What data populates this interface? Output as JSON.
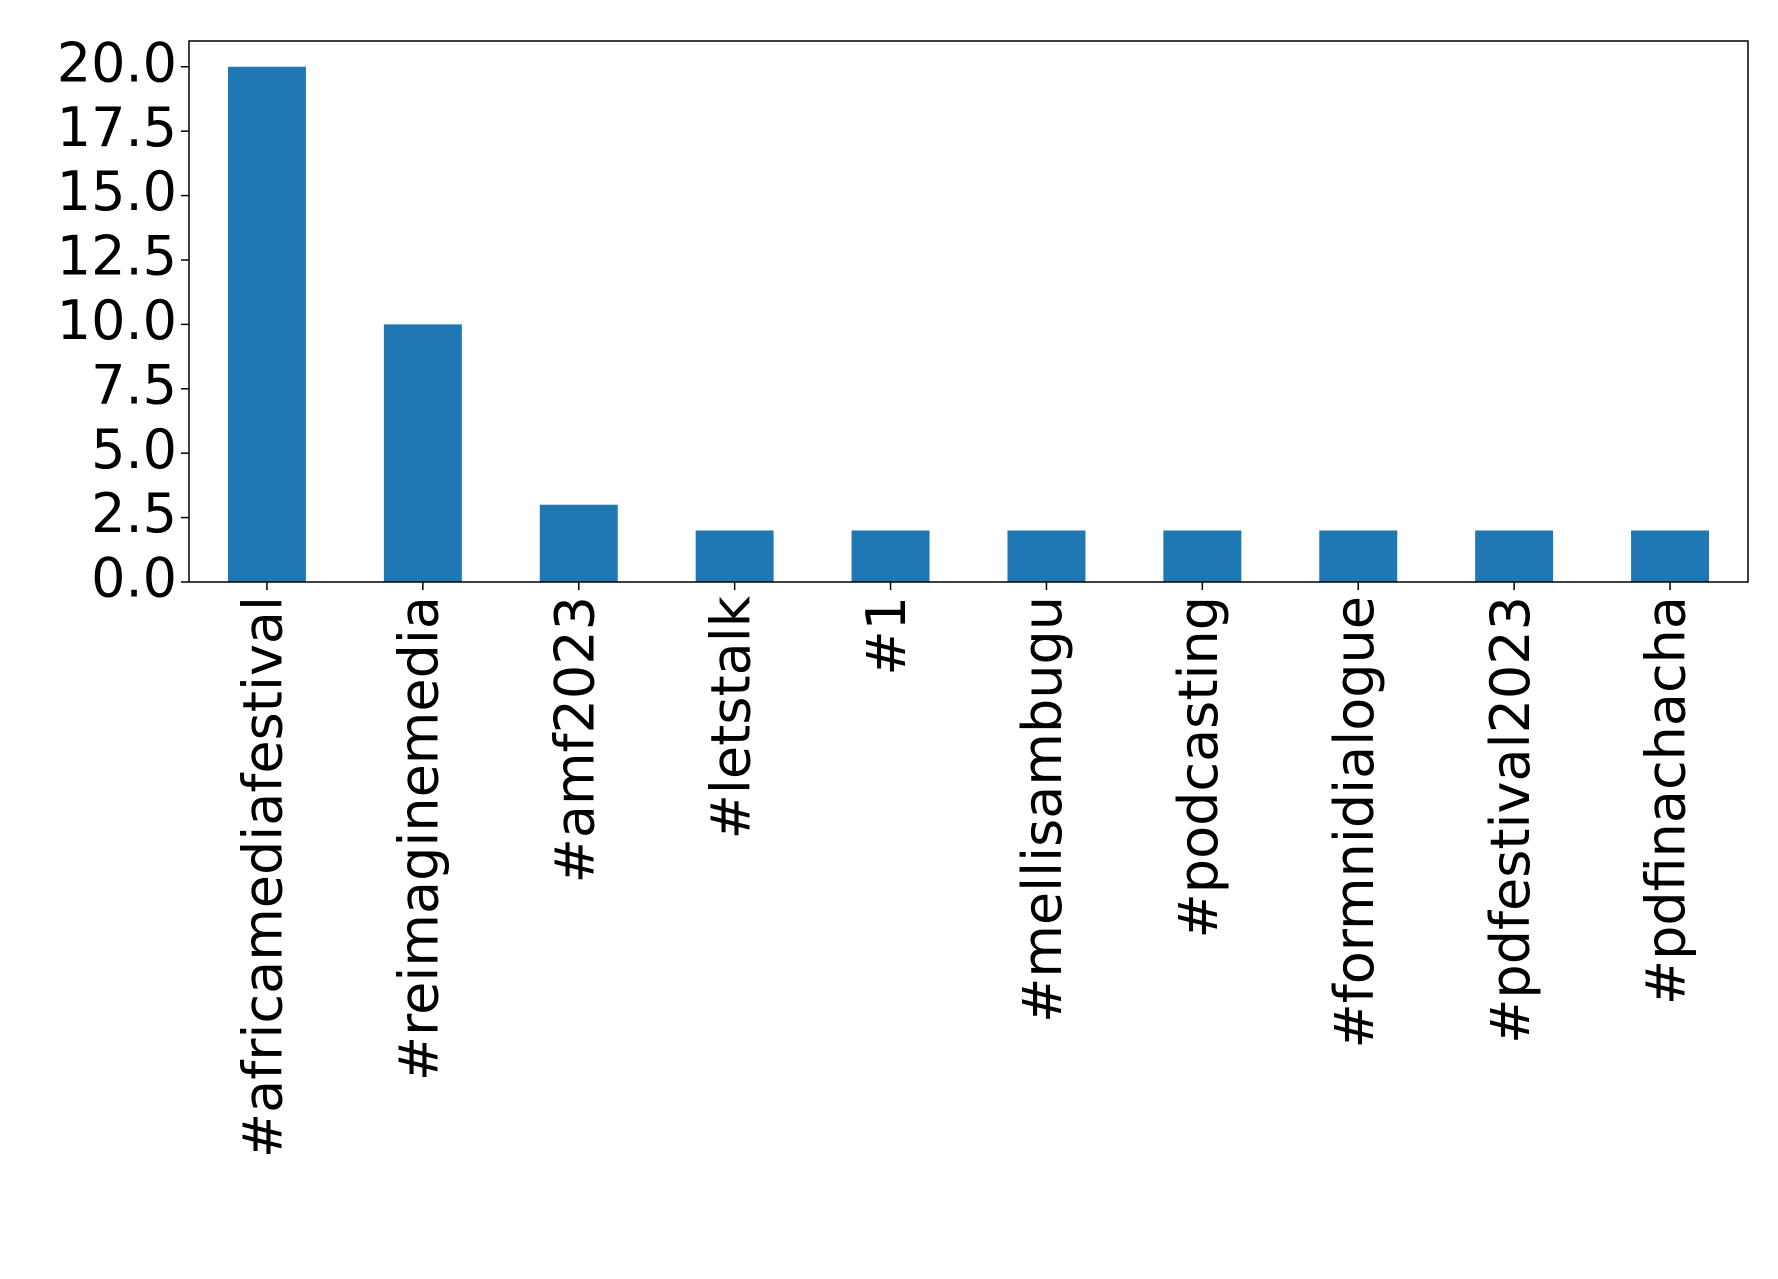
{
  "chart_data": {
    "type": "bar",
    "categories": [
      "#africamediafestival",
      "#reimaginemedia",
      "#amf2023",
      "#letstalk",
      "#1",
      "#mellisambugu",
      "#podcasting",
      "#formnidialogue",
      "#pdfestival2023",
      "#pdfinachacha"
    ],
    "values": [
      20,
      10,
      3,
      2,
      2,
      2,
      2,
      2,
      2,
      2
    ],
    "color": "#1f77b4",
    "ylim": [
      0,
      21
    ],
    "yticks": [
      {
        "value": 0,
        "label": "0.0"
      },
      {
        "value": 2.5,
        "label": "2.5"
      },
      {
        "value": 5,
        "label": "5.0"
      },
      {
        "value": 7.5,
        "label": "7.5"
      },
      {
        "value": 10,
        "label": "10.0"
      },
      {
        "value": 12.5,
        "label": "12.5"
      },
      {
        "value": 15,
        "label": "15.0"
      },
      {
        "value": 17.5,
        "label": "17.5"
      },
      {
        "value": 20,
        "label": "20.0"
      }
    ],
    "grid": false
  }
}
